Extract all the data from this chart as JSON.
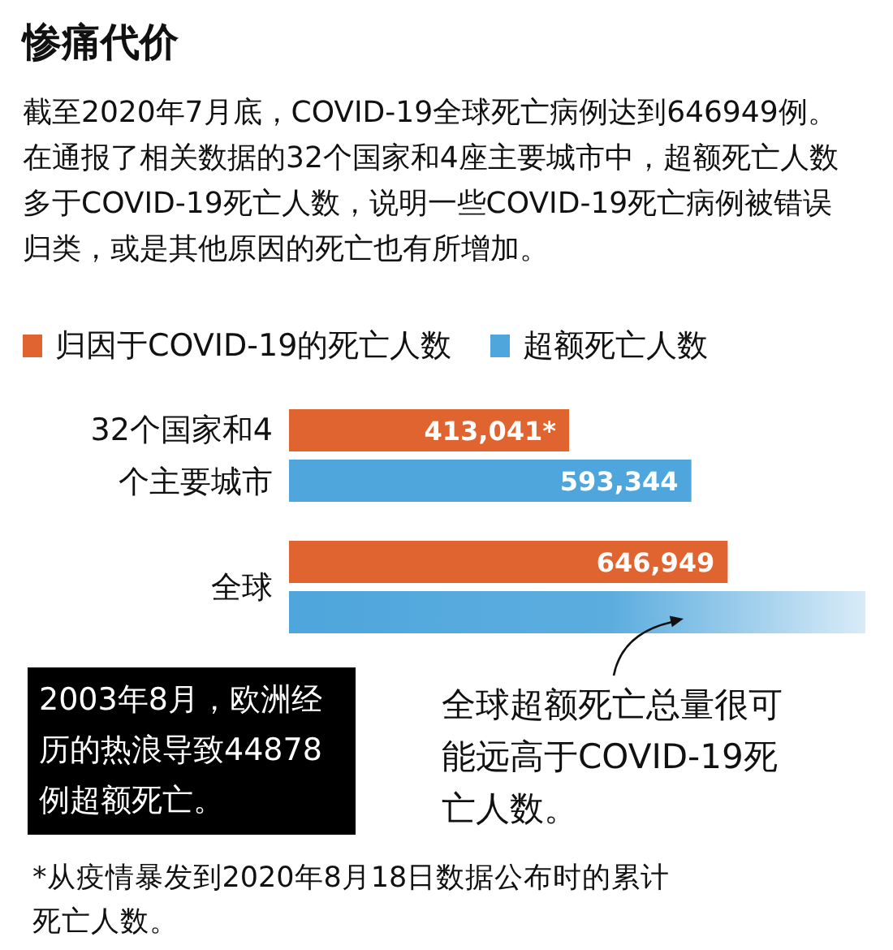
{
  "chart_data": {
    "type": "bar",
    "orientation": "horizontal",
    "title": "惨痛代价",
    "subtitle": "截至2020年7月底，COVID-19全球死亡病例达到646949例。在通报了相关数据的32个国家和4座主要城市中，超额死亡人数多于COVID-19死亡人数，说明一些COVID-19死亡病例被错误归类，或是其他原因的死亡也有所增加。",
    "categories": [
      "32个国家和4个主要城市",
      "全球"
    ],
    "series": [
      {
        "name": "归因于COVID-19的死亡人数",
        "color": "#e0642f",
        "values": [
          413041,
          646949
        ],
        "value_labels": [
          "413,041*",
          "646,949"
        ]
      },
      {
        "name": "超额死亡人数",
        "color": "#4ea6dc",
        "values": [
          593344,
          850000
        ],
        "value_labels": [
          "593,344",
          null
        ]
      }
    ],
    "legend": "top left",
    "annotations": [
      "2003年8月，欧洲经历的热浪导致44878例超额死亡。",
      "全球超额死亡总量很可能远高于COVID-19死亡人数。",
      "*从疫情暴发到2020年8月18日数据公布时的累计死亡人数。"
    ]
  }
}
